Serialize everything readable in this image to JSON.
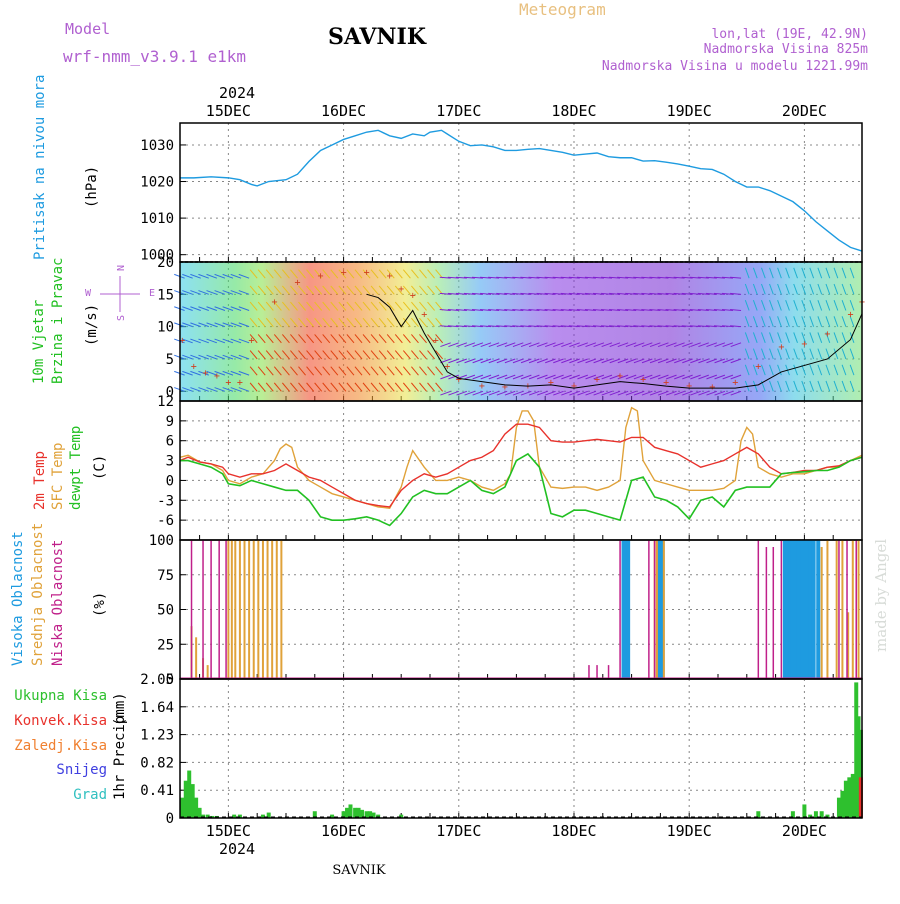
{
  "header": {
    "model_label": "Model",
    "model_name": "wrf-nmm_v3.9.1 e1km",
    "station": "SAVNIK",
    "product": "Meteogram",
    "lonlat": "lon,lat (19E, 42.9N)",
    "elevation": "Nadmorska Visina 825m",
    "model_elevation": "Nadmorska Visina u modelu 1221.99m",
    "year_top": "2024",
    "year_bottom": "2024",
    "footer_station": "SAVNIK",
    "credit": "made by Angel"
  },
  "colors": {
    "pressure": "#1e9be0",
    "temp2m": "#e8322c",
    "sfc": "#e0a23a",
    "dewpt": "#22c022",
    "high_cloud": "#1e9be0",
    "mid_cloud": "#e0a23a",
    "low_cloud": "#c0208a",
    "total_precip": "#2ec02e",
    "conv_precip": "#e8322c",
    "frz_precip": "#f08030",
    "snow": "#4040e0",
    "grad": "#30c0c0",
    "gust": "#d04020",
    "dir_legend": "#b060d0"
  },
  "chart_data": [
    {
      "type": "line",
      "panel": "pressure",
      "ylabel_lines": [
        "Pritisak na nivou mora",
        "(hPa)"
      ],
      "ylim": [
        998,
        1036
      ],
      "yticks": [
        1000,
        1010,
        1020,
        1030
      ],
      "grid": true,
      "x_day_ticks": [
        "15DEC",
        "16DEC",
        "17DEC",
        "18DEC",
        "19DEC",
        "20DEC"
      ],
      "x_range_days": [
        14.58,
        20.5
      ],
      "series": [
        {
          "x": [
            14.58,
            14.7,
            14.85,
            15.0,
            15.1,
            15.2,
            15.25,
            15.35,
            15.5,
            15.6,
            15.7,
            15.8,
            15.9,
            16.0,
            16.1,
            16.2,
            16.3,
            16.4,
            16.5,
            16.6,
            16.7,
            16.75,
            16.85,
            16.9,
            17.0,
            17.1,
            17.2,
            17.3,
            17.4,
            17.5,
            17.6,
            17.7,
            17.8,
            17.9,
            18.0,
            18.1,
            18.2,
            18.3,
            18.4,
            18.5,
            18.6,
            18.7,
            18.8,
            18.9,
            19.0,
            19.1,
            19.2,
            19.3,
            19.4,
            19.5,
            19.6,
            19.7,
            19.8,
            19.9,
            20.0,
            20.1,
            20.2,
            20.3,
            20.4,
            20.5
          ],
          "values": [
            1021,
            1021,
            1021.3,
            1021,
            1020.5,
            1019.2,
            1018.8,
            1020,
            1020.5,
            1022,
            1025.5,
            1028.5,
            1030,
            1031.5,
            1032.5,
            1033.5,
            1034,
            1032.5,
            1031.8,
            1033,
            1032.5,
            1033.5,
            1034,
            1033,
            1031,
            1029.8,
            1030,
            1029.5,
            1028.5,
            1028.5,
            1028.8,
            1029,
            1028.5,
            1028,
            1027.2,
            1027.5,
            1027.8,
            1026.8,
            1026.5,
            1026.5,
            1025.6,
            1025.7,
            1025.3,
            1024.8,
            1024.2,
            1023.5,
            1023.3,
            1022,
            1020,
            1018.5,
            1018.5,
            1017.5,
            1016,
            1014.5,
            1012,
            1009,
            1006.5,
            1004,
            1002,
            1001
          ]
        }
      ]
    },
    {
      "type": "scatter",
      "panel": "wind",
      "ylabel_lines": [
        "10m Vjetar",
        "Brzina i Pravac",
        "(m/s)"
      ],
      "direction_legend": [
        "N",
        "S",
        "E",
        "W"
      ],
      "ylim": [
        -1.5,
        20
      ],
      "yticks": [
        0,
        5,
        10,
        15,
        20
      ],
      "grid": true,
      "series": [
        {
          "name": "gust",
          "x": [
            14.6,
            14.7,
            14.8,
            14.9,
            15.0,
            15.1,
            15.2,
            15.4,
            15.6,
            15.8,
            16.0,
            16.2,
            16.4,
            16.5,
            16.6,
            16.7,
            16.8,
            16.9,
            17.0,
            17.2,
            17.4,
            17.6,
            17.8,
            18.0,
            18.2,
            18.4,
            18.6,
            18.8,
            19.0,
            19.2,
            19.4,
            19.6,
            19.8,
            20.0,
            20.2,
            20.4,
            20.5
          ],
          "values": [
            8,
            4,
            3,
            2.5,
            1.5,
            1.5,
            8,
            14,
            17,
            18,
            18.5,
            18.5,
            18,
            16,
            15,
            12,
            8,
            4,
            2,
            1,
            0.8,
            1,
            1.5,
            1,
            2,
            2.5,
            2,
            1.5,
            1,
            0.8,
            1.5,
            4,
            7,
            7.5,
            9,
            12,
            14
          ]
        },
        {
          "name": "speed",
          "x": [
            16.2,
            16.3,
            16.4,
            16.5,
            16.6,
            16.7,
            16.8,
            16.9,
            17.0,
            17.2,
            17.4,
            17.6,
            17.8,
            18.0,
            18.2,
            18.4,
            18.6,
            18.8,
            19.0,
            19.2,
            19.4,
            19.6,
            19.8,
            20.0,
            20.2,
            20.4,
            20.5
          ],
          "values": [
            15,
            14.5,
            13,
            10,
            12.5,
            9,
            6,
            3,
            2,
            1.5,
            1,
            0.8,
            1,
            0.5,
            1,
            1.5,
            1.2,
            0.8,
            0.5,
            0.5,
            0.5,
            1,
            3,
            4,
            5,
            8,
            12
          ]
        }
      ]
    },
    {
      "type": "line",
      "panel": "temperature",
      "ylabel_lines": [
        "2m Temp",
        "SFC Temp",
        "dewpt Temp",
        "(C)"
      ],
      "ylim": [
        -9,
        12
      ],
      "yticks": [
        -6,
        -3,
        0,
        3,
        6,
        9,
        12
      ],
      "grid": true,
      "series": [
        {
          "name": "2m Temp",
          "x": [
            14.58,
            14.65,
            14.75,
            14.85,
            14.95,
            15.0,
            15.1,
            15.2,
            15.3,
            15.4,
            15.5,
            15.6,
            15.7,
            15.8,
            15.9,
            16.0,
            16.1,
            16.2,
            16.3,
            16.4,
            16.5,
            16.6,
            16.7,
            16.8,
            16.9,
            17.0,
            17.1,
            17.2,
            17.3,
            17.4,
            17.5,
            17.6,
            17.7,
            17.8,
            17.9,
            18.0,
            18.1,
            18.2,
            18.3,
            18.4,
            18.5,
            18.6,
            18.7,
            18.8,
            18.9,
            19.0,
            19.1,
            19.2,
            19.3,
            19.4,
            19.5,
            19.6,
            19.7,
            19.8,
            19.9,
            20.0,
            20.1,
            20.2,
            20.3,
            20.4,
            20.5
          ],
          "values": [
            3,
            3.5,
            2.8,
            2.5,
            2,
            1,
            0.5,
            1,
            1,
            1.5,
            2.5,
            1.5,
            0.5,
            0,
            -1,
            -2,
            -3,
            -3.5,
            -3.8,
            -4,
            -1.5,
            0,
            1,
            0.5,
            1,
            2,
            3,
            3.5,
            4.5,
            7,
            8.5,
            8.5,
            8,
            6,
            5.8,
            5.8,
            6,
            6.2,
            6,
            5.8,
            6.5,
            6.5,
            5,
            4.5,
            4,
            3,
            2,
            2.5,
            3,
            4,
            5,
            4,
            2,
            1,
            1.2,
            1.5,
            1.5,
            2,
            2.2,
            3,
            3.5
          ]
        },
        {
          "name": "SFC Temp",
          "x": [
            14.58,
            14.65,
            14.75,
            14.85,
            14.95,
            15.0,
            15.1,
            15.2,
            15.3,
            15.4,
            15.45,
            15.5,
            15.55,
            15.6,
            15.7,
            15.8,
            15.9,
            16.0,
            16.1,
            16.2,
            16.3,
            16.4,
            16.5,
            16.55,
            16.6,
            16.7,
            16.8,
            16.9,
            17.0,
            17.1,
            17.2,
            17.3,
            17.4,
            17.45,
            17.5,
            17.55,
            17.6,
            17.65,
            17.7,
            17.8,
            17.9,
            18.0,
            18.1,
            18.2,
            18.3,
            18.4,
            18.45,
            18.5,
            18.55,
            18.6,
            18.7,
            18.8,
            18.9,
            19.0,
            19.1,
            19.2,
            19.3,
            19.4,
            19.45,
            19.5,
            19.55,
            19.6,
            19.7,
            19.8,
            19.9,
            20.0,
            20.1,
            20.2,
            20.3,
            20.4,
            20.5
          ],
          "values": [
            3.5,
            3.8,
            2.8,
            2.5,
            1.5,
            0,
            -0.5,
            0.5,
            1,
            3,
            4.8,
            5.5,
            5,
            2,
            0,
            -1,
            -2,
            -2.5,
            -3,
            -3.5,
            -4,
            -4.2,
            -1,
            2,
            4.5,
            2,
            0,
            0,
            0.5,
            0,
            -1,
            -1.5,
            -0.5,
            1,
            8,
            10.5,
            10.5,
            9,
            2,
            -1,
            -1.2,
            -1,
            -1,
            -1.5,
            -1,
            0,
            8,
            11,
            10.5,
            3,
            0,
            -0.5,
            -1,
            -1.5,
            -1.5,
            -1.5,
            -1.2,
            0,
            6,
            8,
            7,
            2,
            1,
            0.5,
            1,
            1,
            1.5,
            2,
            2,
            3,
            3.8
          ]
        },
        {
          "name": "dewpt Temp",
          "x": [
            14.58,
            14.65,
            14.75,
            14.85,
            14.95,
            15.0,
            15.1,
            15.2,
            15.3,
            15.4,
            15.5,
            15.6,
            15.7,
            15.8,
            15.9,
            16.0,
            16.1,
            16.2,
            16.3,
            16.4,
            16.5,
            16.6,
            16.7,
            16.8,
            16.9,
            17.0,
            17.1,
            17.2,
            17.3,
            17.4,
            17.5,
            17.6,
            17.7,
            17.8,
            17.9,
            18.0,
            18.1,
            18.2,
            18.3,
            18.4,
            18.5,
            18.6,
            18.7,
            18.8,
            18.9,
            19.0,
            19.1,
            19.2,
            19.3,
            19.4,
            19.5,
            19.6,
            19.7,
            19.8,
            19.9,
            20.0,
            20.1,
            20.2,
            20.3,
            20.4,
            20.5
          ],
          "values": [
            3,
            3,
            2.5,
            2,
            1,
            -0.5,
            -0.8,
            0,
            -0.5,
            -1,
            -1.5,
            -1.5,
            -3,
            -5.5,
            -6,
            -6,
            -5.8,
            -5.5,
            -6,
            -6.8,
            -5,
            -2.5,
            -1.5,
            -2,
            -2,
            -1,
            0,
            -1.5,
            -2,
            -1,
            3,
            4,
            2,
            -5,
            -5.5,
            -4.5,
            -4.5,
            -5,
            -5.5,
            -6,
            0,
            0.5,
            -2.5,
            -3,
            -4,
            -5.8,
            -3,
            -2.5,
            -4,
            -1.5,
            -1,
            -1,
            -1,
            1,
            1.2,
            1.3,
            1.5,
            1.5,
            2,
            3,
            3.5
          ]
        }
      ]
    },
    {
      "type": "bar",
      "panel": "clouds",
      "ylabel_lines": [
        "Visoka Oblacnost",
        "Srednja Oblacnost",
        "Niska Oblacnost",
        "(%)"
      ],
      "ylim": [
        0,
        100
      ],
      "yticks": [
        0,
        25,
        50,
        75,
        100
      ],
      "grid": true,
      "series": [
        {
          "name": "Visoka Oblacnost",
          "x": [
            18.43,
            18.45,
            18.47,
            18.73,
            18.75,
            18.77,
            19.83,
            19.85,
            19.88,
            19.9,
            19.93,
            19.95,
            19.98,
            20.0,
            20.03,
            20.05,
            20.08,
            20.12
          ],
          "values": [
            100,
            100,
            100,
            100,
            100,
            100,
            100,
            100,
            100,
            100,
            100,
            100,
            100,
            100,
            100,
            100,
            100,
            100
          ]
        },
        {
          "name": "Srednja Oblacnost",
          "x": [
            14.68,
            14.72,
            14.78,
            14.82,
            15.0,
            15.03,
            15.06,
            15.1,
            15.14,
            15.18,
            15.22,
            15.26,
            15.3,
            15.34,
            15.38,
            15.42,
            15.46,
            18.7,
            18.72,
            18.78,
            20.15,
            20.2,
            20.28,
            20.33,
            20.38,
            20.42,
            20.47
          ],
          "values": [
            38,
            30,
            15,
            10,
            100,
            100,
            100,
            100,
            100,
            100,
            100,
            100,
            100,
            100,
            100,
            100,
            100,
            100,
            100,
            100,
            95,
            100,
            100,
            100,
            48,
            100,
            100
          ]
        },
        {
          "name": "Niska Oblacnost",
          "x": [
            14.68,
            14.78,
            14.85,
            14.92,
            14.98,
            18.13,
            18.2,
            18.3,
            18.4,
            18.65,
            18.7,
            19.6,
            19.67,
            19.73,
            19.8,
            20.3,
            20.37,
            20.45
          ],
          "values": [
            100,
            100,
            100,
            100,
            100,
            10,
            10,
            10,
            100,
            100,
            100,
            100,
            95,
            95,
            100,
            100,
            100,
            100
          ]
        }
      ]
    },
    {
      "type": "bar",
      "panel": "precipitation",
      "legend": [
        "Ukupna Kisa",
        "Konvek.Kisa",
        "Zaledj.Kisa",
        "Snijeg",
        "Grad"
      ],
      "ylabel_lines": [
        "1hr Precip",
        "(mm)"
      ],
      "ylim": [
        0,
        2.05
      ],
      "yticks": [
        0,
        0.41,
        0.82,
        1.23,
        1.64,
        2.05
      ],
      "ytick_labels": [
        "0",
        "0.41",
        "0.82",
        "1.23",
        "1.64",
        "2.05"
      ],
      "grid": true,
      "series": [
        {
          "name": "Ukupna Kisa",
          "x": [
            14.6,
            14.63,
            14.66,
            14.69,
            14.72,
            14.75,
            14.78,
            14.82,
            14.86,
            14.9,
            15.05,
            15.1,
            15.3,
            15.35,
            15.75,
            15.9,
            16.0,
            16.03,
            16.06,
            16.1,
            16.13,
            16.16,
            16.2,
            16.23,
            16.26,
            16.3,
            16.5,
            19.6,
            19.9,
            20.0,
            20.05,
            20.1,
            20.15,
            20.2,
            20.3,
            20.33,
            20.36,
            20.39,
            20.42,
            20.45,
            20.47,
            20.49
          ],
          "values": [
            0.3,
            0.55,
            0.7,
            0.5,
            0.3,
            0.15,
            0.05,
            0.05,
            0.03,
            0.03,
            0.05,
            0.05,
            0.05,
            0.08,
            0.1,
            0.05,
            0.1,
            0.15,
            0.2,
            0.15,
            0.15,
            0.12,
            0.1,
            0.1,
            0.08,
            0.05,
            0.05,
            0.1,
            0.1,
            0.2,
            0.05,
            0.1,
            0.1,
            0.05,
            0.3,
            0.4,
            0.55,
            0.6,
            0.65,
            2.0,
            1.5,
            1.3
          ]
        },
        {
          "name": "Konvek.Kisa",
          "x": [
            20.49
          ],
          "values": [
            0.6
          ]
        }
      ]
    }
  ]
}
